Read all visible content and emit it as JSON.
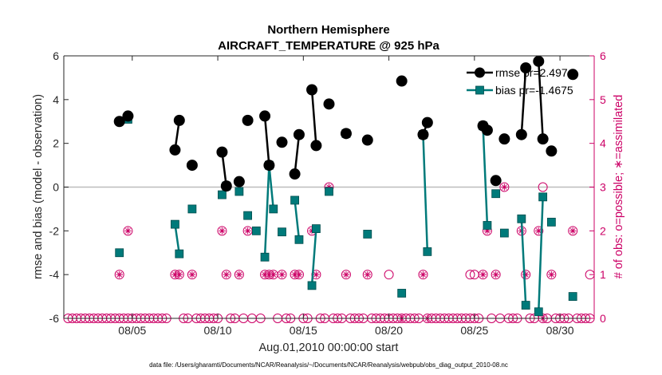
{
  "chart_data": {
    "type": "line",
    "title": "Northern Hemisphere",
    "subtitle": "AIRCRAFT_TEMPERATURE @ 925 hPa",
    "xlabel": "Aug.01,2010 00:00:00 start",
    "ylabel": "rmse and bias (model - observation)",
    "ylabel_right": "# of obs: o=possible; ∗=assimilated",
    "footnote": "data file: /Users/gharamti/Documents/NCAR/Reanalysis/~/Documents/NCAR/Reanalysis/webpub/obs_diag_output_2010-08.nc",
    "xlim": [
      1,
      32
    ],
    "ylim": [
      -6,
      6
    ],
    "ylim_right": [
      0,
      6
    ],
    "x_ticks": [
      5,
      10,
      15,
      20,
      25,
      30
    ],
    "x_tick_labels": [
      "08/05",
      "08/10",
      "08/15",
      "08/20",
      "08/25",
      "08/30"
    ],
    "y_ticks": [
      -6,
      -4,
      -2,
      0,
      2,
      4,
      6
    ],
    "y_tick_labels": [
      "-6",
      "-4",
      "-2",
      "0",
      "2",
      "4",
      "6"
    ],
    "y_ticks_right": [
      0,
      1,
      2,
      3,
      4,
      5,
      6
    ],
    "y_tick_labels_right": [
      "0",
      "1",
      "2",
      "3",
      "4",
      "5",
      "6"
    ],
    "zero_line": 0,
    "series": [
      {
        "name": "rmse pr=2.4974",
        "color": "#000000",
        "marker": "circle",
        "segments": [
          [
            [
              4.25,
              3.0
            ]
          ],
          [
            [
              4.75,
              3.25
            ]
          ],
          [
            [
              7.5,
              1.7
            ],
            [
              7.75,
              3.05
            ]
          ],
          [
            [
              8.5,
              1.0
            ]
          ],
          [
            [
              10.25,
              1.6
            ],
            [
              10.5,
              0.05
            ]
          ],
          [
            [
              11.25,
              0.25
            ]
          ],
          [
            [
              11.75,
              3.05
            ]
          ],
          [
            [
              12.75,
              3.25
            ],
            [
              13.0,
              1.0
            ]
          ],
          [
            [
              13.75,
              2.05
            ]
          ],
          [
            [
              14.5,
              0.6
            ],
            [
              14.75,
              2.4
            ]
          ],
          [
            [
              15.5,
              4.45
            ],
            [
              15.75,
              1.9
            ]
          ],
          [
            [
              16.5,
              3.8
            ]
          ],
          [
            [
              17.5,
              2.45
            ]
          ],
          [
            [
              18.75,
              2.15
            ]
          ],
          [
            [
              20.75,
              4.85
            ]
          ],
          [
            [
              22.0,
              2.4
            ],
            [
              22.25,
              2.95
            ]
          ],
          [
            [
              25.5,
              2.8
            ],
            [
              25.75,
              2.6
            ]
          ],
          [
            [
              26.25,
              0.3
            ]
          ],
          [
            [
              26.75,
              2.2
            ]
          ],
          [
            [
              27.75,
              2.4
            ],
            [
              28.0,
              5.45
            ]
          ],
          [
            [
              28.75,
              5.75
            ],
            [
              29.0,
              2.2
            ]
          ],
          [
            [
              29.5,
              1.65
            ]
          ],
          [
            [
              30.75,
              5.15
            ]
          ]
        ]
      },
      {
        "name": "bias pr=-1.4675",
        "color": "#007a7a",
        "marker": "square",
        "segments": [
          [
            [
              4.25,
              -3.0
            ]
          ],
          [
            [
              4.75,
              3.1
            ]
          ],
          [
            [
              7.5,
              -1.7
            ],
            [
              7.75,
              -3.05
            ]
          ],
          [
            [
              8.5,
              -1.0
            ]
          ],
          [
            [
              10.25,
              -0.35
            ],
            [
              10.5,
              0.05
            ]
          ],
          [
            [
              11.25,
              -0.2
            ]
          ],
          [
            [
              11.75,
              -1.3
            ]
          ],
          [
            [
              12.25,
              -2.0
            ]
          ],
          [
            [
              12.75,
              -3.2
            ],
            [
              13.0,
              1.0
            ],
            [
              13.25,
              -1.0
            ]
          ],
          [
            [
              13.75,
              -2.05
            ]
          ],
          [
            [
              14.5,
              -0.6
            ],
            [
              14.75,
              -2.4
            ]
          ],
          [
            [
              15.5,
              -4.5
            ],
            [
              15.75,
              -1.9
            ]
          ],
          [
            [
              16.5,
              -0.2
            ]
          ],
          [
            [
              17.5,
              2.45
            ]
          ],
          [
            [
              18.75,
              -2.15
            ]
          ],
          [
            [
              20.75,
              -4.85
            ]
          ],
          [
            [
              22.0,
              2.4
            ],
            [
              22.25,
              -2.95
            ]
          ],
          [
            [
              25.5,
              2.8
            ],
            [
              25.75,
              -1.75
            ]
          ],
          [
            [
              26.25,
              -0.3
            ]
          ],
          [
            [
              26.75,
              -2.1
            ]
          ],
          [
            [
              27.75,
              -1.45
            ],
            [
              28.0,
              -5.4
            ]
          ],
          [
            [
              28.75,
              -5.7
            ],
            [
              29.0,
              -0.45
            ]
          ],
          [
            [
              29.5,
              -1.6
            ]
          ],
          [
            [
              30.75,
              -5.0
            ]
          ]
        ]
      }
    ],
    "obs_possible": [
      [
        1.25,
        0
      ],
      [
        1.5,
        0
      ],
      [
        1.75,
        0
      ],
      [
        2.0,
        0
      ],
      [
        2.25,
        0
      ],
      [
        2.5,
        0
      ],
      [
        2.75,
        0
      ],
      [
        3.0,
        0
      ],
      [
        3.25,
        0
      ],
      [
        3.5,
        0
      ],
      [
        3.75,
        0
      ],
      [
        4.0,
        0
      ],
      [
        4.25,
        0
      ],
      [
        4.5,
        0
      ],
      [
        4.75,
        0
      ],
      [
        5.0,
        0
      ],
      [
        5.25,
        0
      ],
      [
        5.5,
        0
      ],
      [
        5.75,
        0
      ],
      [
        6.0,
        0
      ],
      [
        6.25,
        0
      ],
      [
        6.5,
        0
      ],
      [
        6.75,
        0
      ],
      [
        7.0,
        0
      ],
      [
        8.0,
        0
      ],
      [
        8.25,
        0
      ],
      [
        8.75,
        0
      ],
      [
        9.0,
        0
      ],
      [
        9.25,
        0
      ],
      [
        9.5,
        0
      ],
      [
        9.75,
        0
      ],
      [
        10.0,
        0
      ],
      [
        10.75,
        0
      ],
      [
        11.0,
        0
      ],
      [
        11.5,
        0
      ],
      [
        12.0,
        0
      ],
      [
        12.5,
        0
      ],
      [
        13.5,
        0
      ],
      [
        14.0,
        0
      ],
      [
        14.25,
        0
      ],
      [
        15.0,
        0
      ],
      [
        15.25,
        0
      ],
      [
        16.0,
        0
      ],
      [
        16.25,
        0
      ],
      [
        16.75,
        0
      ],
      [
        17.0,
        0
      ],
      [
        17.25,
        0
      ],
      [
        17.75,
        0
      ],
      [
        18.0,
        0
      ],
      [
        18.25,
        0
      ],
      [
        18.5,
        0
      ],
      [
        19.0,
        0
      ],
      [
        19.25,
        0
      ],
      [
        19.5,
        0
      ],
      [
        19.75,
        0
      ],
      [
        20.0,
        0
      ],
      [
        20.25,
        0
      ],
      [
        20.5,
        0
      ],
      [
        21.0,
        0
      ],
      [
        21.25,
        0
      ],
      [
        21.5,
        0
      ],
      [
        21.75,
        0
      ],
      [
        22.5,
        0
      ],
      [
        22.75,
        0
      ],
      [
        23.0,
        0
      ],
      [
        23.25,
        0
      ],
      [
        23.5,
        0
      ],
      [
        23.75,
        0
      ],
      [
        24.0,
        0
      ],
      [
        24.25,
        0
      ],
      [
        24.5,
        0
      ],
      [
        24.75,
        0
      ],
      [
        25.0,
        0
      ],
      [
        25.25,
        0
      ],
      [
        26.0,
        0
      ],
      [
        26.5,
        0
      ],
      [
        27.0,
        0
      ],
      [
        27.25,
        0
      ],
      [
        27.5,
        0
      ],
      [
        28.25,
        0
      ],
      [
        28.5,
        0
      ],
      [
        29.25,
        0
      ],
      [
        29.75,
        0
      ],
      [
        30.0,
        0
      ],
      [
        30.25,
        0
      ],
      [
        30.5,
        0
      ],
      [
        31.0,
        0
      ],
      [
        31.25,
        0
      ],
      [
        31.5,
        0
      ],
      [
        31.75,
        0
      ],
      [
        20.0,
        1
      ],
      [
        24.75,
        1
      ],
      [
        25.0,
        1
      ],
      [
        31.75,
        1
      ],
      [
        29.0,
        3
      ]
    ],
    "obs_assimilated": [
      [
        4.25,
        1
      ],
      [
        4.75,
        2
      ],
      [
        7.5,
        1
      ],
      [
        7.75,
        1
      ],
      [
        8.5,
        1
      ],
      [
        10.25,
        2
      ],
      [
        10.5,
        1
      ],
      [
        11.25,
        1
      ],
      [
        11.75,
        2
      ],
      [
        12.75,
        1
      ],
      [
        13.0,
        1
      ],
      [
        13.25,
        1
      ],
      [
        13.75,
        1
      ],
      [
        14.5,
        1
      ],
      [
        14.75,
        1
      ],
      [
        15.5,
        2
      ],
      [
        15.75,
        1
      ],
      [
        16.5,
        3
      ],
      [
        17.5,
        1
      ],
      [
        18.75,
        1
      ],
      [
        20.75,
        0
      ],
      [
        22.0,
        1
      ],
      [
        22.25,
        0
      ],
      [
        25.5,
        1
      ],
      [
        25.75,
        2
      ],
      [
        26.25,
        1
      ],
      [
        26.75,
        3
      ],
      [
        27.75,
        2
      ],
      [
        28.0,
        1
      ],
      [
        28.75,
        2
      ],
      [
        29.0,
        0
      ],
      [
        29.5,
        1
      ],
      [
        30.75,
        2
      ]
    ]
  }
}
